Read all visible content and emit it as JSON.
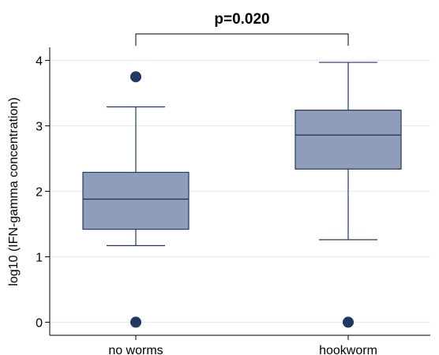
{
  "chart_data": {
    "type": "box",
    "title": "",
    "xlabel": "",
    "ylabel": "log10 (IFN-gamma concentration)",
    "ylim": [
      -0.2,
      4.2
    ],
    "yticks": [
      0,
      1,
      2,
      3,
      4
    ],
    "grid": "horizontal",
    "annotation": "p=0.020",
    "colors": {
      "box_fill": "#8f9db8",
      "box_stroke": "#1f3864",
      "outlier": "#1f3864",
      "grid": "#e6eaf2"
    },
    "categories": [
      "no worms",
      "hookworm"
    ],
    "boxes": [
      {
        "name": "no worms",
        "whisker_low": 1.17,
        "q1": 1.42,
        "median": 1.88,
        "q3": 2.29,
        "whisker_high": 3.29,
        "outliers": [
          3.75,
          0.0
        ]
      },
      {
        "name": "hookworm",
        "whisker_low": 1.26,
        "q1": 2.34,
        "median": 2.86,
        "q3": 3.24,
        "whisker_high": 3.97,
        "outliers": [
          0.0
        ]
      }
    ]
  }
}
